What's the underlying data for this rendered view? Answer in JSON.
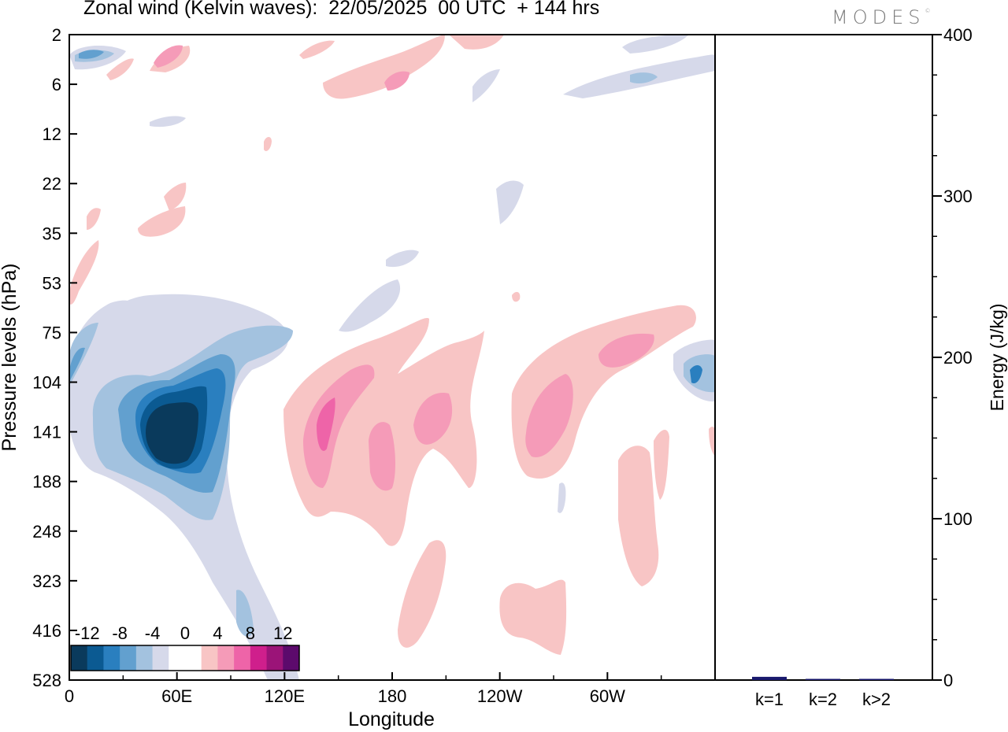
{
  "header": {
    "title": "Zonal wind (Kelvin waves):  22/05/2025  00 UTC  + 144 hrs",
    "brand": "MODES"
  },
  "chart_data": [
    {
      "type": "heatmap",
      "title": "Zonal wind (Kelvin waves):  22/05/2025  00 UTC  + 144 hrs",
      "xlabel": "Longitude",
      "ylabel": "Pressure levels (hPa)",
      "x_ticks": [
        "0",
        "60E",
        "120E",
        "180",
        "120W",
        "60W"
      ],
      "y_ticks": [
        "2",
        "6",
        "12",
        "22",
        "35",
        "53",
        "75",
        "104",
        "141",
        "188",
        "248",
        "323",
        "416",
        "528"
      ],
      "colorbar": {
        "labels": [
          "-12",
          "-8",
          "-4",
          "0",
          "4",
          "8",
          "12"
        ],
        "colors": [
          "#0a3a5c",
          "#0b5a92",
          "#2a7fbf",
          "#62a0cf",
          "#a3c2df",
          "#d6d9ea",
          "#ffffff",
          "#ffffff",
          "#f8c5c5",
          "#f59bb8",
          "#ee64a8",
          "#cf1f8c",
          "#9b1478",
          "#5c0a6c"
        ]
      },
      "regions": [
        {
          "level": -12,
          "lon": 56,
          "p": 141
        },
        {
          "level": -10,
          "lon": 55,
          "p": 141
        },
        {
          "level": -8,
          "lon": 58,
          "p": 141
        },
        {
          "level": -6,
          "lon": 60,
          "p": 141
        },
        {
          "level": -4,
          "lon": 62,
          "p": 141
        },
        {
          "level": -2,
          "lon": 65,
          "p": 188
        },
        {
          "level": -2,
          "lon": 30,
          "p": 75
        },
        {
          "level": -2,
          "lon": 135,
          "p": 65
        },
        {
          "level": 2,
          "lon": 180,
          "p": 160
        },
        {
          "level": 4,
          "lon": 140,
          "p": 141
        },
        {
          "level": 6,
          "lon": 142,
          "p": 141
        },
        {
          "level": 4,
          "lon": 170,
          "p": 141
        },
        {
          "level": 4,
          "lon": 197,
          "p": 141
        },
        {
          "level": 4,
          "lon": 252,
          "p": 141
        },
        {
          "level": 4,
          "lon": 305,
          "p": 104
        },
        {
          "level": 2,
          "lon": 255,
          "p": 400
        },
        {
          "level": 2,
          "lon": 195,
          "p": 400
        },
        {
          "level": 2,
          "lon": 330,
          "p": 200
        },
        {
          "level": 2,
          "lon": 50,
          "p": 30
        },
        {
          "level": 2,
          "lon": 160,
          "p": 4
        },
        {
          "level": -2,
          "lon": 315,
          "p": 4
        },
        {
          "level": -2,
          "lon": 15,
          "p": 3
        },
        {
          "level": -4,
          "lon": 350,
          "p": 104
        }
      ],
      "ylim": [
        2,
        528
      ],
      "xlim": [
        0,
        360
      ]
    },
    {
      "type": "bar",
      "categories": [
        "k=1",
        "k=2",
        "k>2"
      ],
      "values": [
        2,
        0.5,
        0.5
      ],
      "ylabel": "Energy (J/kg)",
      "ylim": [
        0,
        400
      ],
      "y_ticks": [
        "0",
        "100",
        "200",
        "300",
        "400"
      ],
      "color": "#1a1a6e"
    }
  ]
}
